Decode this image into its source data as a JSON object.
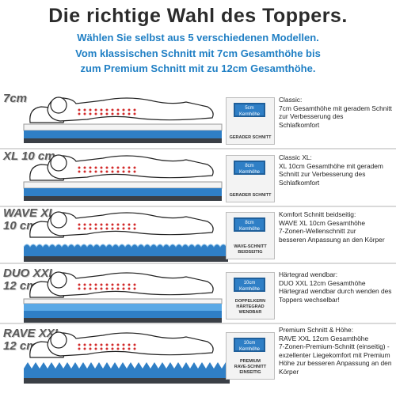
{
  "header": {
    "title": "Die richtige Wahl des Toppers.",
    "lines": [
      "Wählen Sie selbst aus 5 verschiedenen Modellen.",
      "Vom klassischen Schnitt mit 7cm Gesamthöhe bis",
      "zum Premium Schnitt mit zu 12cm Gesamthöhe."
    ]
  },
  "models": [
    {
      "size_label": [
        "7cm"
      ],
      "badge_top": [
        "5cm",
        "Kernhöhe"
      ],
      "badge_bottom": [
        "GERADER SCHNITT"
      ],
      "description": [
        "Classic:",
        "7cm Gesamthöhe mit geradem Schnitt",
        "zur Verbesserung des",
        "Schlafkomfort"
      ],
      "profile": "straight"
    },
    {
      "size_label": [
        "XL 10 cm"
      ],
      "badge_top": [
        "8cm",
        "Kernhöhe"
      ],
      "badge_bottom": [
        "GERADER SCHNITT"
      ],
      "description": [
        "Classic XL:",
        "XL 10cm Gesamthöhe mit geradem",
        "Schnitt zur Verbesserung des",
        "Schlafkomfort"
      ],
      "profile": "straight"
    },
    {
      "size_label": [
        "WAVE XL",
        "10 cm"
      ],
      "badge_top": [
        "8cm",
        "Kernhöhe"
      ],
      "badge_bottom": [
        "WAVE-SCHNITT",
        "BEIDSEITIG"
      ],
      "description": [
        "Komfort Schnitt beidseitig:",
        "WAVE XL 10cm Gesamthöhe",
        "7-Zonen-Wellenschnitt zur",
        "besseren Anpassung an den Körper"
      ],
      "profile": "wave"
    },
    {
      "size_label": [
        "DUO XXL",
        "12 cm"
      ],
      "badge_top": [
        "10cm",
        "Kernhöhe"
      ],
      "badge_bottom": [
        "DOPPELKERN",
        "HÄRTEGRAD WENDBAR"
      ],
      "description": [
        "Härtegrad wendbar:",
        "DUO XXL 12cm Gesamthöhe",
        "Härtegrad wendbar durch wenden des",
        "Toppers wechselbar!"
      ],
      "profile": "duo"
    },
    {
      "size_label": [
        "RAVE XXL",
        "12 cm"
      ],
      "badge_top": [
        "10cm",
        "Kernhöhe"
      ],
      "badge_bottom": [
        "PREMIUM",
        "RAVE-SCHNITT",
        "EINSEITIG"
      ],
      "description": [
        "Premium Schnitt & Höhe:",
        "RAVE XXL 12cm Gesamthöhe",
        "7-Zonen-Premium-Schnitt (einseitig) -",
        "exzellenter Liegekomfort mit Premium",
        "Höhe zur besseren Anpassung an den",
        "Körper"
      ],
      "profile": "rave"
    }
  ],
  "colors": {
    "accent_blue": "#1f7fc4",
    "core_blue": "#2f7fc6",
    "base_dark": "#3a3f46",
    "dots_red": "#d22a2a"
  }
}
